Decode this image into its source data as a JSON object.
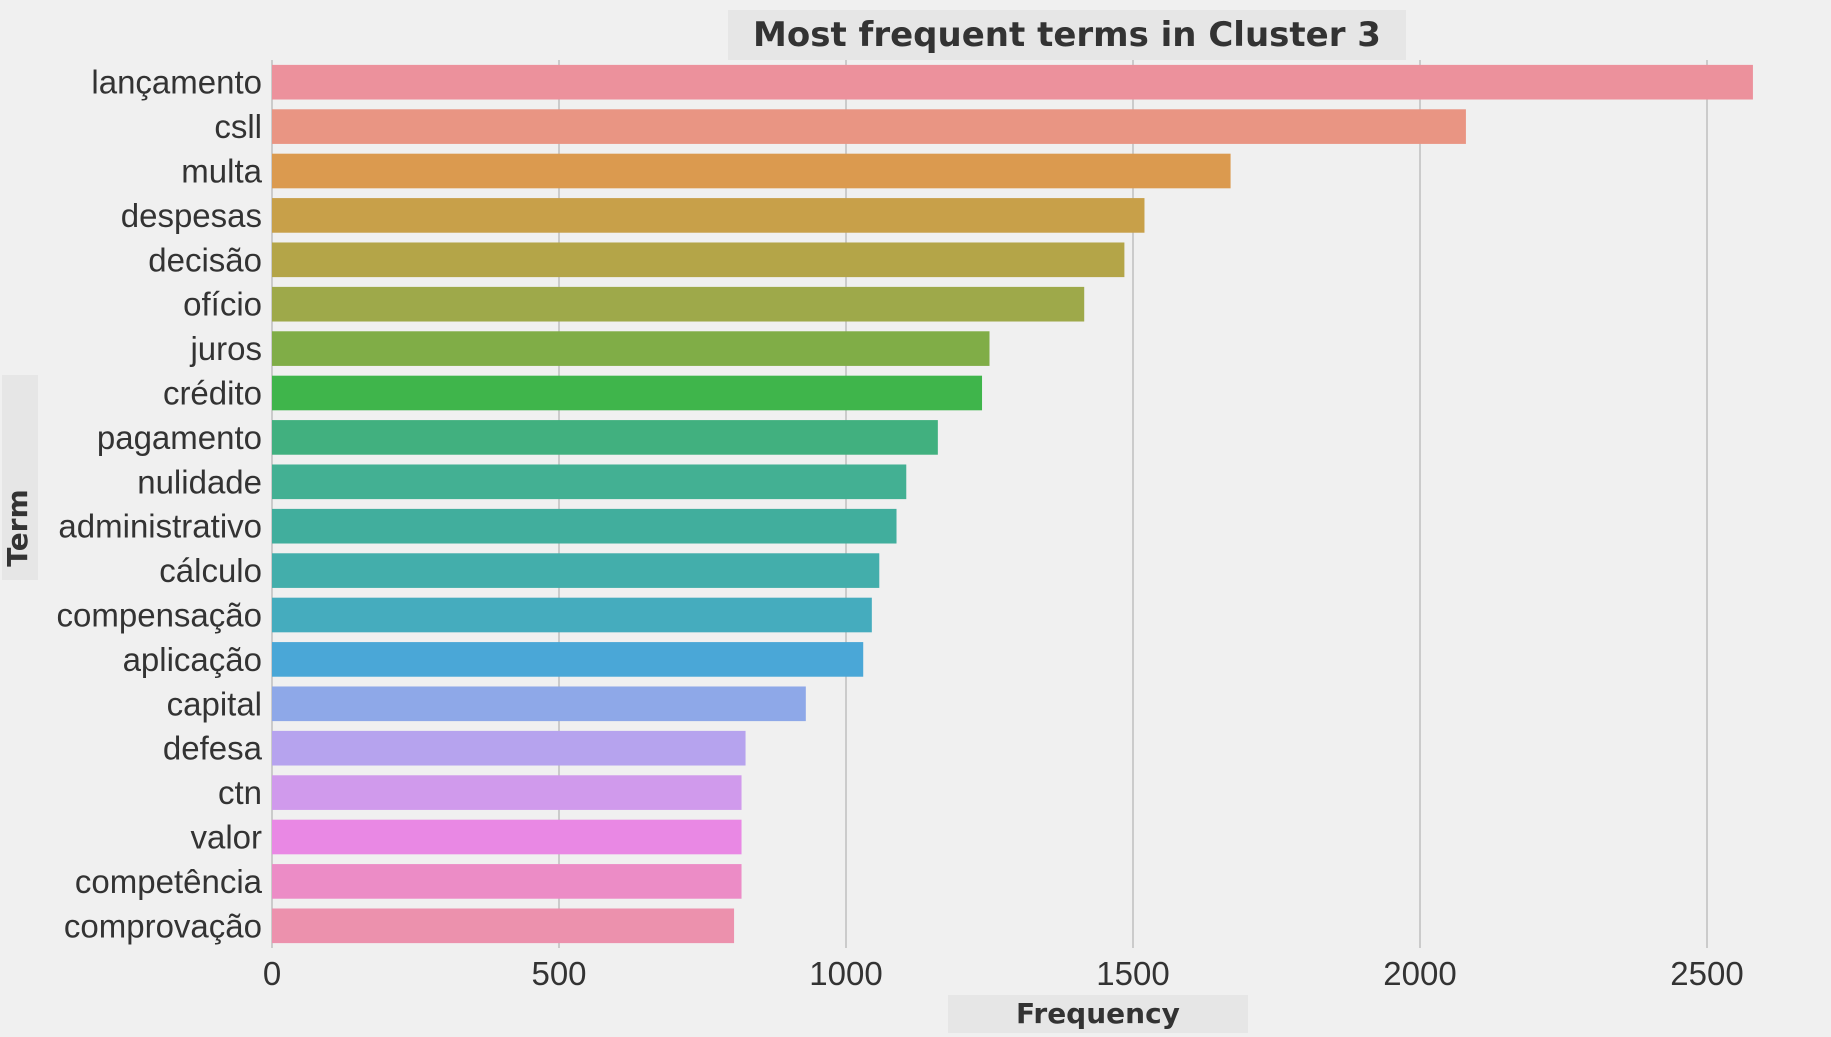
{
  "chart_data": {
    "type": "bar",
    "orientation": "horizontal",
    "title": "Most frequent terms in Cluster 3",
    "xlabel": "Frequency",
    "ylabel": "Term",
    "xlim": [
      0,
      2650
    ],
    "xticks": [
      0,
      500,
      1000,
      1500,
      2000,
      2500
    ],
    "grid": true,
    "categories": [
      "lançamento",
      "csll",
      "multa",
      "despesas",
      "decisão",
      "ofício",
      "juros",
      "crédito",
      "pagamento",
      "nulidade",
      "administrativo",
      "cálculo",
      "compensação",
      "aplicação",
      "capital",
      "defesa",
      "ctn",
      "valor",
      "competência",
      "comprovação"
    ],
    "values": [
      2580,
      2080,
      1670,
      1520,
      1485,
      1415,
      1250,
      1237,
      1160,
      1105,
      1088,
      1058,
      1045,
      1030,
      930,
      825,
      818,
      818,
      818,
      805
    ],
    "colors": [
      "#ec919c",
      "#e99583",
      "#db9a4f",
      "#c8a049",
      "#b4a548",
      "#9ea94a",
      "#80ad47",
      "#3fb54b",
      "#41b07f",
      "#43b093",
      "#41ae9d",
      "#43aeab",
      "#45acbe",
      "#4aa7d7",
      "#8ea8e8",
      "#b6a3ee",
      "#d09aec",
      "#e988e4",
      "#ec8cc6",
      "#ec91ad"
    ]
  }
}
